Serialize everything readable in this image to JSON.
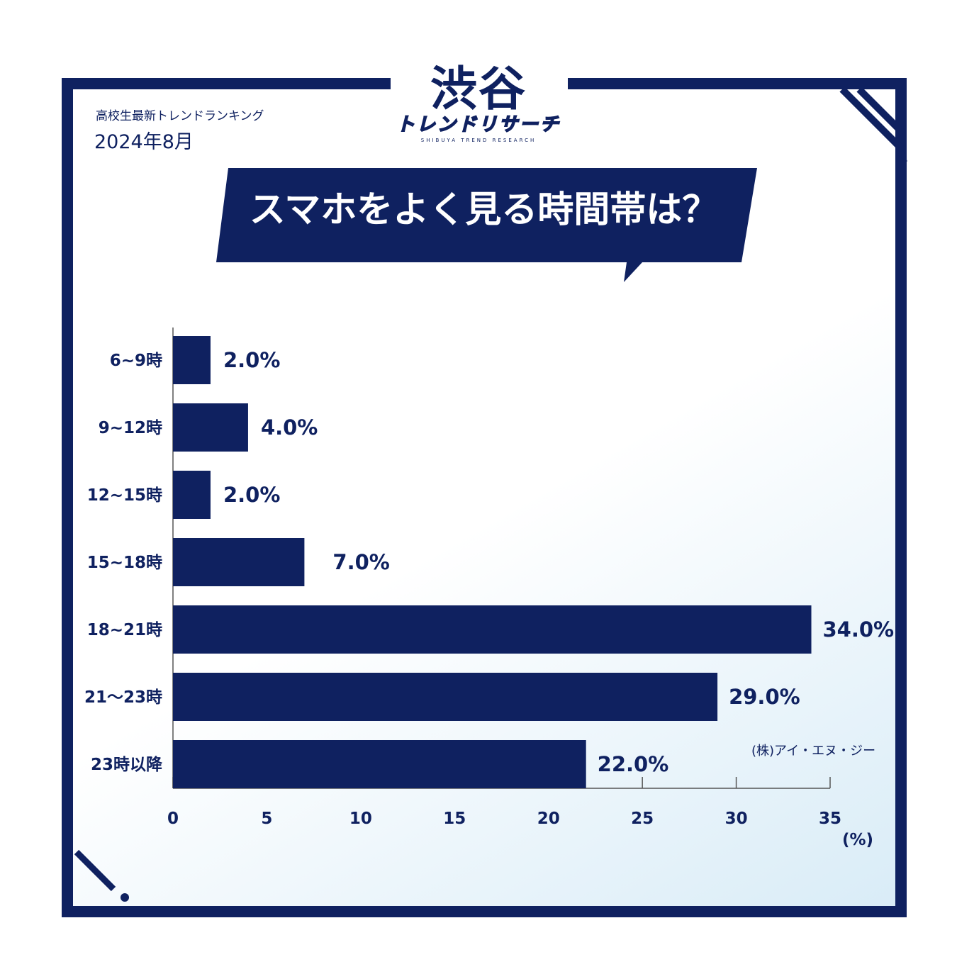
{
  "header": {
    "logo_main": "渋谷",
    "logo_sub": "トレンドリサーチ",
    "logo_tagline": "SHIBUYA TREND RESEARCH",
    "subtitle": "高校生最新トレンドランキング",
    "period": "2024年8月"
  },
  "title": "スマホをよく見る時間帯は？",
  "footer": {
    "credit": "(株)アイ・エヌ・ジー"
  },
  "colors": {
    "navy": "#0f2160",
    "background_tint": "#d9ecf7"
  },
  "chart_data": {
    "type": "bar",
    "orientation": "horizontal",
    "categories": [
      "6~9時",
      "9~12時",
      "12~15時",
      "15~18時",
      "18~21時",
      "21〜23時",
      "23時以降"
    ],
    "values": [
      2.0,
      4.0,
      2.0,
      7.0,
      34.0,
      29.0,
      22.0
    ],
    "value_labels": [
      "2.0%",
      "4.0%",
      "2.0%",
      "7.0%",
      "34.0%",
      "29.0%",
      "22.0%"
    ],
    "xlim": [
      0,
      35
    ],
    "xticks": [
      0,
      5,
      10,
      15,
      20,
      25,
      30,
      35
    ],
    "xlabel": "(%)",
    "grid": false,
    "bar_color": "#0f2160"
  }
}
